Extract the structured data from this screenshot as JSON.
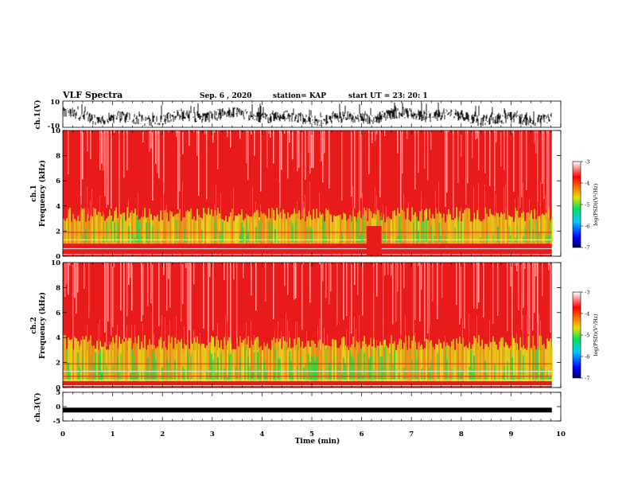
{
  "header": {
    "title": "VLF Spectra",
    "date": "Sep. 6 , 2020",
    "station": "station= KAP",
    "start": "start UT = 23: 20: 1"
  },
  "chart_data": [
    {
      "panel": "ch1-waveform",
      "type": "line",
      "ylabel": "ch.1(V)",
      "ylim": [
        -10,
        10
      ],
      "yticks": [
        "10",
        "-10"
      ],
      "xlim": [
        0,
        10
      ],
      "x_extent": [
        0,
        9.82
      ],
      "envelope_ranges_approx": [
        [
          -9,
          9
        ]
      ]
    },
    {
      "panel": "ch1-spectrogram",
      "type": "heatmap",
      "ylabel_line1": "ch.1",
      "ylabel_line2": "Frequency (kHz)",
      "ylim": [
        0,
        10
      ],
      "yticks": [
        "0",
        "2",
        "4",
        "6",
        "8",
        "10"
      ],
      "xlim": [
        0,
        10
      ],
      "x_extent": [
        0,
        9.82
      ],
      "intensity_band_khz": [
        1,
        3
      ],
      "colorbar": {
        "label": "log(PSD)(V²/Hz)",
        "range": [
          -7,
          -3
        ],
        "ticks": [
          "-3",
          "-4",
          "-5",
          "-6",
          "-7"
        ]
      }
    },
    {
      "panel": "ch2-spectrogram",
      "type": "heatmap",
      "ylabel_line1": "ch.2",
      "ylabel_line2": "Frequency (kHz)",
      "ylim": [
        0,
        10
      ],
      "yticks": [
        "0",
        "2",
        "4",
        "6",
        "8",
        "10"
      ],
      "xlim": [
        0,
        10
      ],
      "x_extent": [
        0,
        9.82
      ],
      "intensity_band_khz": [
        0.5,
        3
      ],
      "colorbar": {
        "label": "log(PSD)(V²/Hz)",
        "range": [
          -7,
          -3
        ],
        "ticks": [
          "-3",
          "-4",
          "-5",
          "-6",
          "-7"
        ]
      }
    },
    {
      "panel": "ch3-waveform",
      "type": "line",
      "ylabel": "ch.3(V)",
      "ylim": [
        -5,
        5
      ],
      "yticks": [
        "5",
        "0",
        "-5"
      ],
      "xlim": [
        0,
        10
      ],
      "x_extent": [
        0,
        9.82
      ],
      "level_v": -1.2
    }
  ],
  "xaxis": {
    "label": "Time (min)",
    "ticks": [
      "0",
      "1",
      "2",
      "3",
      "4",
      "5",
      "6",
      "7",
      "8",
      "9",
      "10"
    ]
  },
  "colors": {
    "hot": "#e81a1a",
    "warm": "#f07a1a",
    "yellow": "#e6e01c",
    "green": "#3ad23a",
    "white": "#ffffff"
  }
}
